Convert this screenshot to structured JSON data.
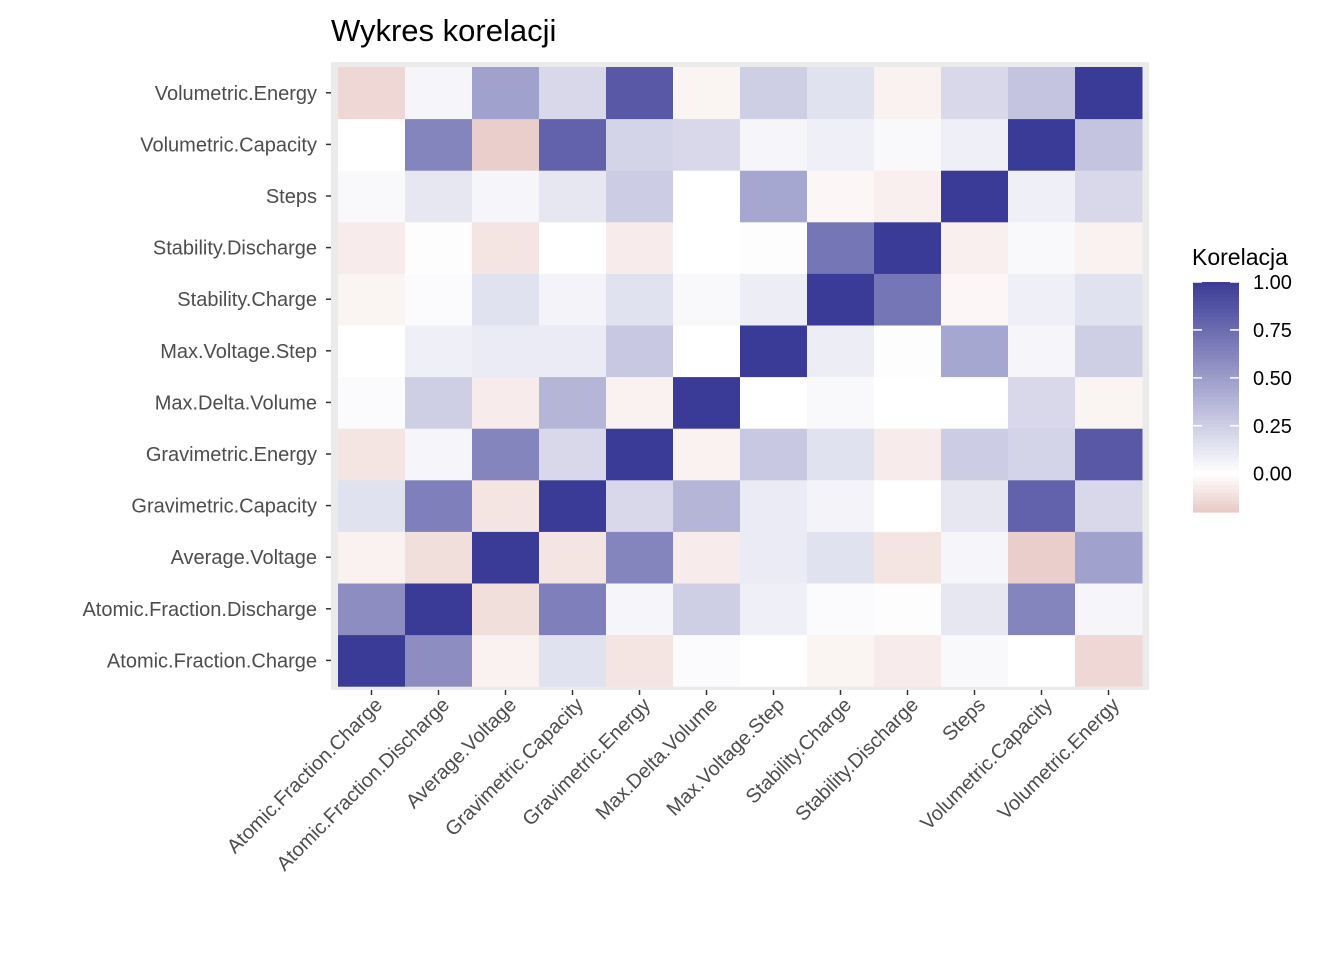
{
  "chart_data": {
    "type": "heatmap",
    "title": "Wykres korelacji",
    "variables": [
      "Atomic.Fraction.Charge",
      "Atomic.Fraction.Discharge",
      "Average.Voltage",
      "Gravimetric.Capacity",
      "Gravimetric.Energy",
      "Max.Delta.Volume",
      "Max.Voltage.Step",
      "Stability.Charge",
      "Stability.Discharge",
      "Steps",
      "Volumetric.Capacity",
      "Volumetric.Energy"
    ],
    "matrix": [
      [
        1.0,
        0.58,
        -0.05,
        0.15,
        -0.1,
        0.02,
        0.0,
        -0.04,
        -0.07,
        0.03,
        0.0,
        -0.15
      ],
      [
        0.58,
        1.0,
        -0.12,
        0.65,
        0.05,
        0.25,
        0.08,
        0.02,
        0.01,
        0.12,
        0.62,
        0.05
      ],
      [
        -0.05,
        -0.12,
        1.0,
        -0.1,
        0.62,
        -0.07,
        0.1,
        0.15,
        -0.1,
        0.05,
        -0.18,
        0.48
      ],
      [
        0.15,
        0.65,
        -0.1,
        1.0,
        0.2,
        0.38,
        0.1,
        0.06,
        0.0,
        0.12,
        0.8,
        0.2
      ],
      [
        -0.1,
        0.05,
        0.62,
        0.2,
        1.0,
        -0.05,
        0.28,
        0.15,
        -0.07,
        0.26,
        0.22,
        0.85
      ],
      [
        0.02,
        0.25,
        -0.07,
        0.38,
        -0.05,
        1.0,
        0.0,
        0.03,
        0.0,
        0.0,
        0.2,
        -0.04
      ],
      [
        0.0,
        0.08,
        0.1,
        0.1,
        0.28,
        0.0,
        1.0,
        0.09,
        0.01,
        0.45,
        0.05,
        0.25
      ],
      [
        -0.04,
        0.02,
        0.15,
        0.06,
        0.15,
        0.03,
        0.09,
        1.0,
        0.7,
        -0.03,
        0.08,
        0.15
      ],
      [
        -0.07,
        0.01,
        -0.1,
        0.0,
        -0.07,
        0.0,
        0.01,
        0.7,
        1.0,
        -0.06,
        0.03,
        -0.05
      ],
      [
        0.03,
        0.12,
        0.05,
        0.12,
        0.26,
        0.0,
        0.45,
        -0.03,
        -0.06,
        1.0,
        0.08,
        0.2
      ],
      [
        0.0,
        0.62,
        -0.18,
        0.8,
        0.22,
        0.2,
        0.05,
        0.08,
        0.03,
        0.08,
        1.0,
        0.3
      ],
      [
        -0.15,
        0.05,
        0.48,
        0.2,
        0.85,
        -0.04,
        0.25,
        0.15,
        -0.05,
        0.2,
        0.3,
        1.0
      ]
    ],
    "legend": {
      "title": "Korelacja",
      "breaks": [
        "1.00",
        "0.75",
        "0.50",
        "0.25",
        "0.00"
      ],
      "break_values": [
        1.0,
        0.75,
        0.5,
        0.25,
        0.0
      ],
      "limits": [
        -0.2,
        1.0
      ],
      "placement": "right"
    },
    "colors": {
      "high": "#3a3b96",
      "mid": "#ffffff",
      "low": "#e8c9c5",
      "panel_background": "#ebebeb",
      "tick_text": "#4d4d4d"
    },
    "grid": true
  }
}
